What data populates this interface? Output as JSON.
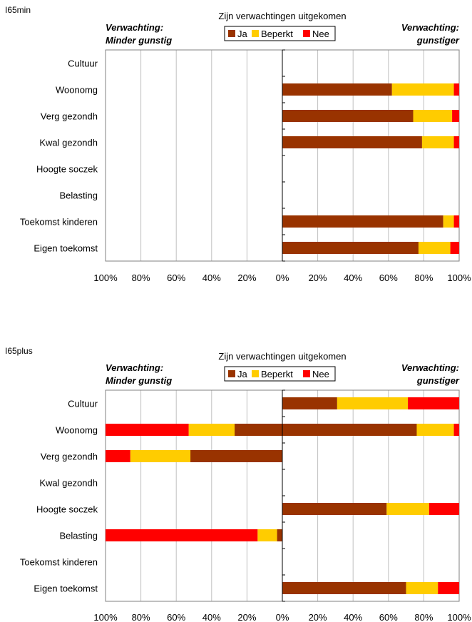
{
  "colors": {
    "ja": "#993300",
    "beperkt": "#FFCC00",
    "nee": "#FF0000",
    "grid": "#C0C0C0"
  },
  "chart_data": [
    {
      "type": "bar",
      "panel_label": "I65min",
      "title": "Zijn verwachtingen uitgekomen",
      "left_header": [
        "Verwachting:",
        "Minder gunstig"
      ],
      "right_header": [
        "Verwachting:",
        "gunstiger"
      ],
      "legend": [
        "Ja",
        "Beperkt",
        "Nee"
      ],
      "categories": [
        "Cultuur",
        "Woonomg",
        "Verg gezondh",
        "Kwal gezondh",
        "Hoogte soczek",
        "Belasting",
        "Toekomst kinderen",
        "Eigen toekomst"
      ],
      "x_ticks": [
        "100%",
        "80%",
        "60%",
        "40%",
        "20%",
        "0%",
        "20%",
        "40%",
        "60%",
        "80%",
        "100%"
      ],
      "xlim": [
        -100,
        100
      ],
      "negative": {
        "Ja": [
          0,
          0,
          0,
          0,
          0,
          0,
          0,
          0
        ],
        "Beperkt": [
          0,
          0,
          0,
          0,
          0,
          0,
          0,
          0
        ],
        "Nee": [
          0,
          0,
          0,
          0,
          0,
          0,
          0,
          0
        ]
      },
      "positive": {
        "Ja": [
          0,
          62,
          74,
          79,
          0,
          0,
          91,
          77
        ],
        "Beperkt": [
          0,
          35,
          22,
          18,
          0,
          0,
          6,
          18
        ],
        "Nee": [
          0,
          3,
          4,
          3,
          0,
          0,
          3,
          5
        ]
      }
    },
    {
      "type": "bar",
      "panel_label": "I65plus",
      "title": "Zijn verwachtingen uitgekomen",
      "left_header": [
        "Verwachting:",
        "Minder gunstig"
      ],
      "right_header": [
        "Verwachting:",
        "gunstiger"
      ],
      "legend": [
        "Ja",
        "Beperkt",
        "Nee"
      ],
      "categories": [
        "Cultuur",
        "Woonomg",
        "Verg gezondh",
        "Kwal gezondh",
        "Hoogte soczek",
        "Belasting",
        "Toekomst kinderen",
        "Eigen toekomst"
      ],
      "x_ticks": [
        "100%",
        "80%",
        "60%",
        "40%",
        "20%",
        "0%",
        "20%",
        "40%",
        "60%",
        "80%",
        "100%"
      ],
      "xlim": [
        -100,
        100
      ],
      "negative": {
        "Ja": [
          0,
          27,
          52,
          0,
          0,
          3,
          0,
          0
        ],
        "Beperkt": [
          0,
          26,
          34,
          0,
          0,
          11,
          0,
          0
        ],
        "Nee": [
          0,
          47,
          14,
          0,
          0,
          86,
          0,
          0
        ]
      },
      "positive": {
        "Ja": [
          31,
          76,
          0,
          0,
          59,
          0,
          0,
          70
        ],
        "Beperkt": [
          40,
          21,
          0,
          0,
          24,
          0,
          0,
          18
        ],
        "Nee": [
          29,
          3,
          0,
          0,
          17,
          0,
          0,
          12
        ]
      }
    }
  ]
}
